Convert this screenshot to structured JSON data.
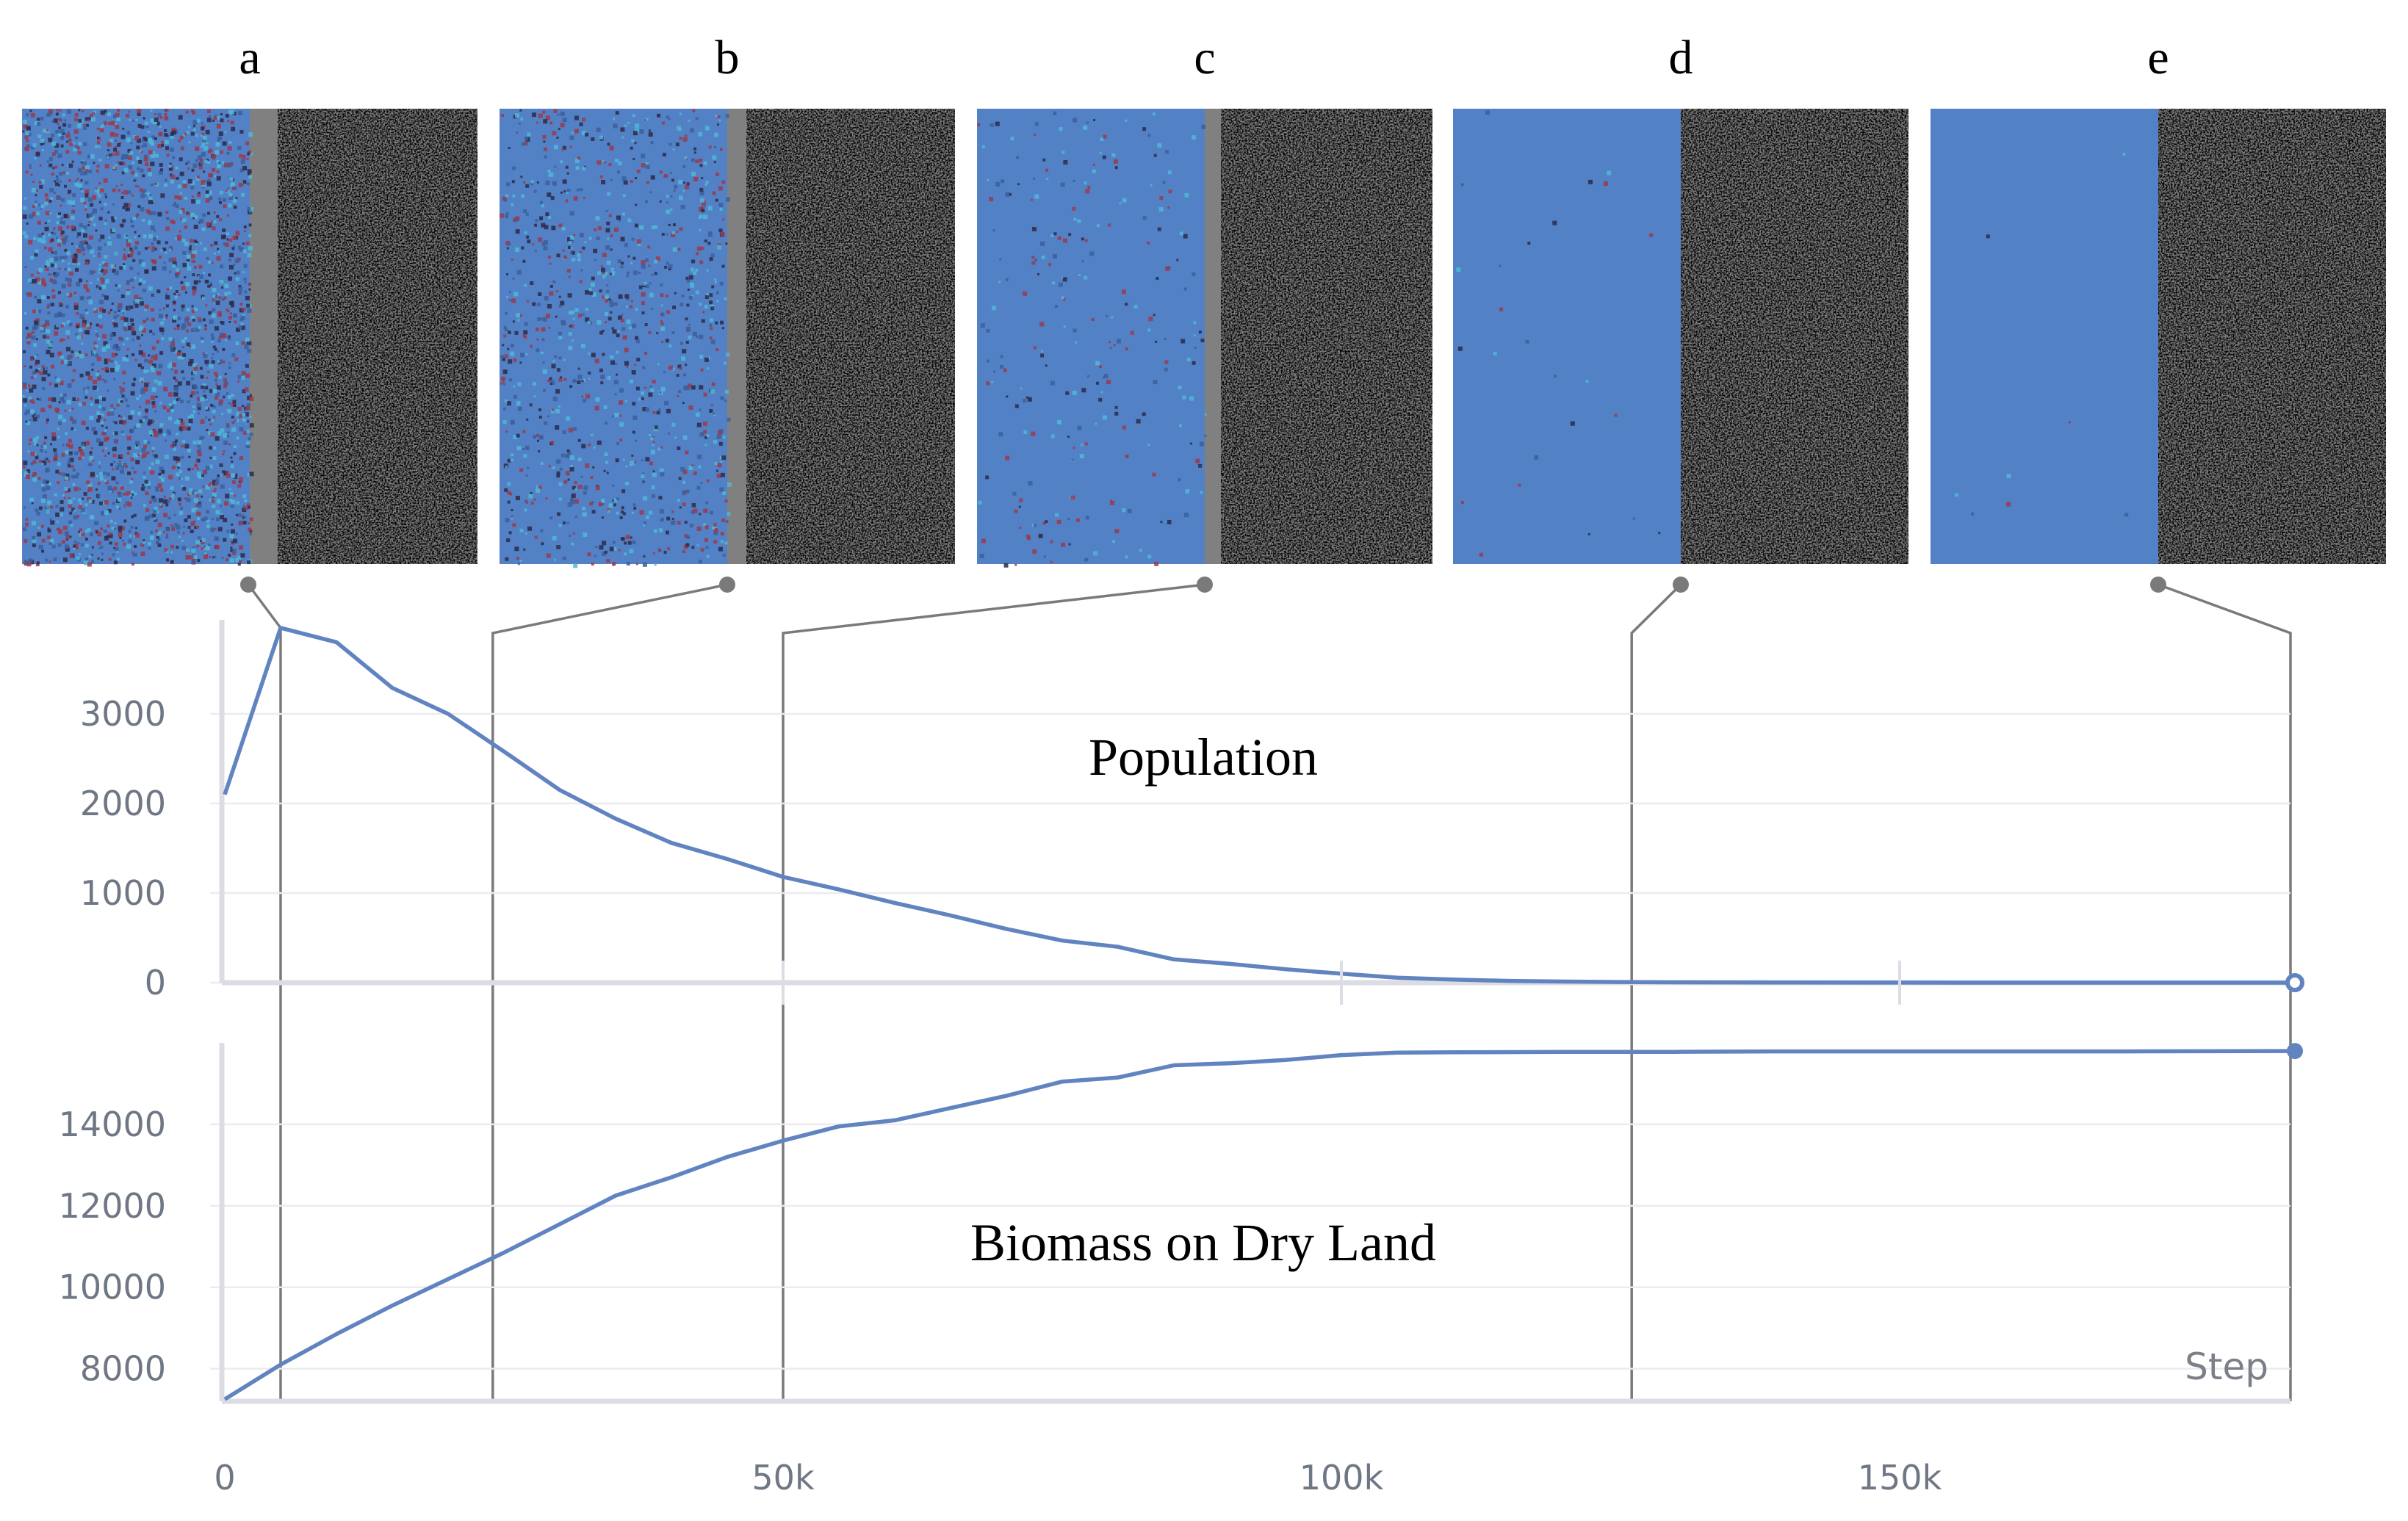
{
  "colors": {
    "series": "#6184c1",
    "water": "#5381c6",
    "land": "#808080",
    "vegetation_green": "#5da84f",
    "vegetation_yellow": "#d2d87c",
    "creature_dark": "#2e2a48",
    "creature_red": "#9b3a4a",
    "creature_cyan": "#4fb7d6",
    "connector": "#7a7a7a"
  },
  "panels": [
    {
      "label": "a",
      "step": 5000
    },
    {
      "label": "b",
      "step": 24000
    },
    {
      "label": "c",
      "step": 50000
    },
    {
      "label": "d",
      "step": 126000
    },
    {
      "label": "e",
      "step": 185000
    }
  ],
  "chart_data": [
    {
      "type": "line",
      "title": "Population",
      "xlabel": "",
      "ylabel": "",
      "xlim": [
        0,
        185000
      ],
      "ylim": [
        0,
        4000
      ],
      "yticks": [
        0,
        1000,
        2000,
        3000
      ],
      "ytick_labels": [
        "0",
        "1000",
        "2000",
        "3000"
      ],
      "grid": true,
      "series": [
        {
          "x": [
            0,
            5000,
            10000,
            15000,
            20000,
            25000,
            30000,
            35000,
            40000,
            45000,
            50000,
            55000,
            60000,
            65000,
            70000,
            75000,
            80000,
            85000,
            90000,
            95000,
            100000,
            105000,
            110000,
            115000,
            120000,
            125000,
            130000,
            140000,
            150000,
            160000,
            170000,
            185000
          ],
          "y": [
            2100,
            3960,
            3800,
            3290,
            3000,
            2580,
            2150,
            1830,
            1560,
            1380,
            1180,
            1040,
            890,
            750,
            600,
            470,
            400,
            260,
            210,
            150,
            100,
            55,
            35,
            20,
            12,
            7,
            4,
            2,
            1,
            0,
            0,
            0
          ]
        }
      ]
    },
    {
      "type": "line",
      "title": "Biomass on Dry Land",
      "xlabel": "Step",
      "ylabel": "",
      "xlim": [
        0,
        185000
      ],
      "ylim": [
        7200,
        16000
      ],
      "xticks": [
        0,
        50000,
        100000,
        150000
      ],
      "xtick_labels": [
        "0",
        "50k",
        "100k",
        "150k"
      ],
      "yticks": [
        8000,
        10000,
        12000,
        14000
      ],
      "ytick_labels": [
        "8000",
        "10000",
        "12000",
        "14000"
      ],
      "grid": true,
      "series": [
        {
          "x": [
            0,
            5000,
            10000,
            15000,
            20000,
            25000,
            30000,
            35000,
            40000,
            45000,
            50000,
            55000,
            60000,
            65000,
            70000,
            75000,
            80000,
            85000,
            90000,
            95000,
            100000,
            105000,
            110000,
            120000,
            130000,
            140000,
            150000,
            160000,
            170000,
            185000
          ],
          "y": [
            7250,
            8100,
            8850,
            9550,
            10200,
            10850,
            11550,
            12250,
            12700,
            13200,
            13600,
            13950,
            14100,
            14400,
            14700,
            15050,
            15150,
            15450,
            15500,
            15580,
            15700,
            15760,
            15770,
            15780,
            15780,
            15790,
            15790,
            15790,
            15790,
            15800
          ]
        }
      ]
    }
  ]
}
